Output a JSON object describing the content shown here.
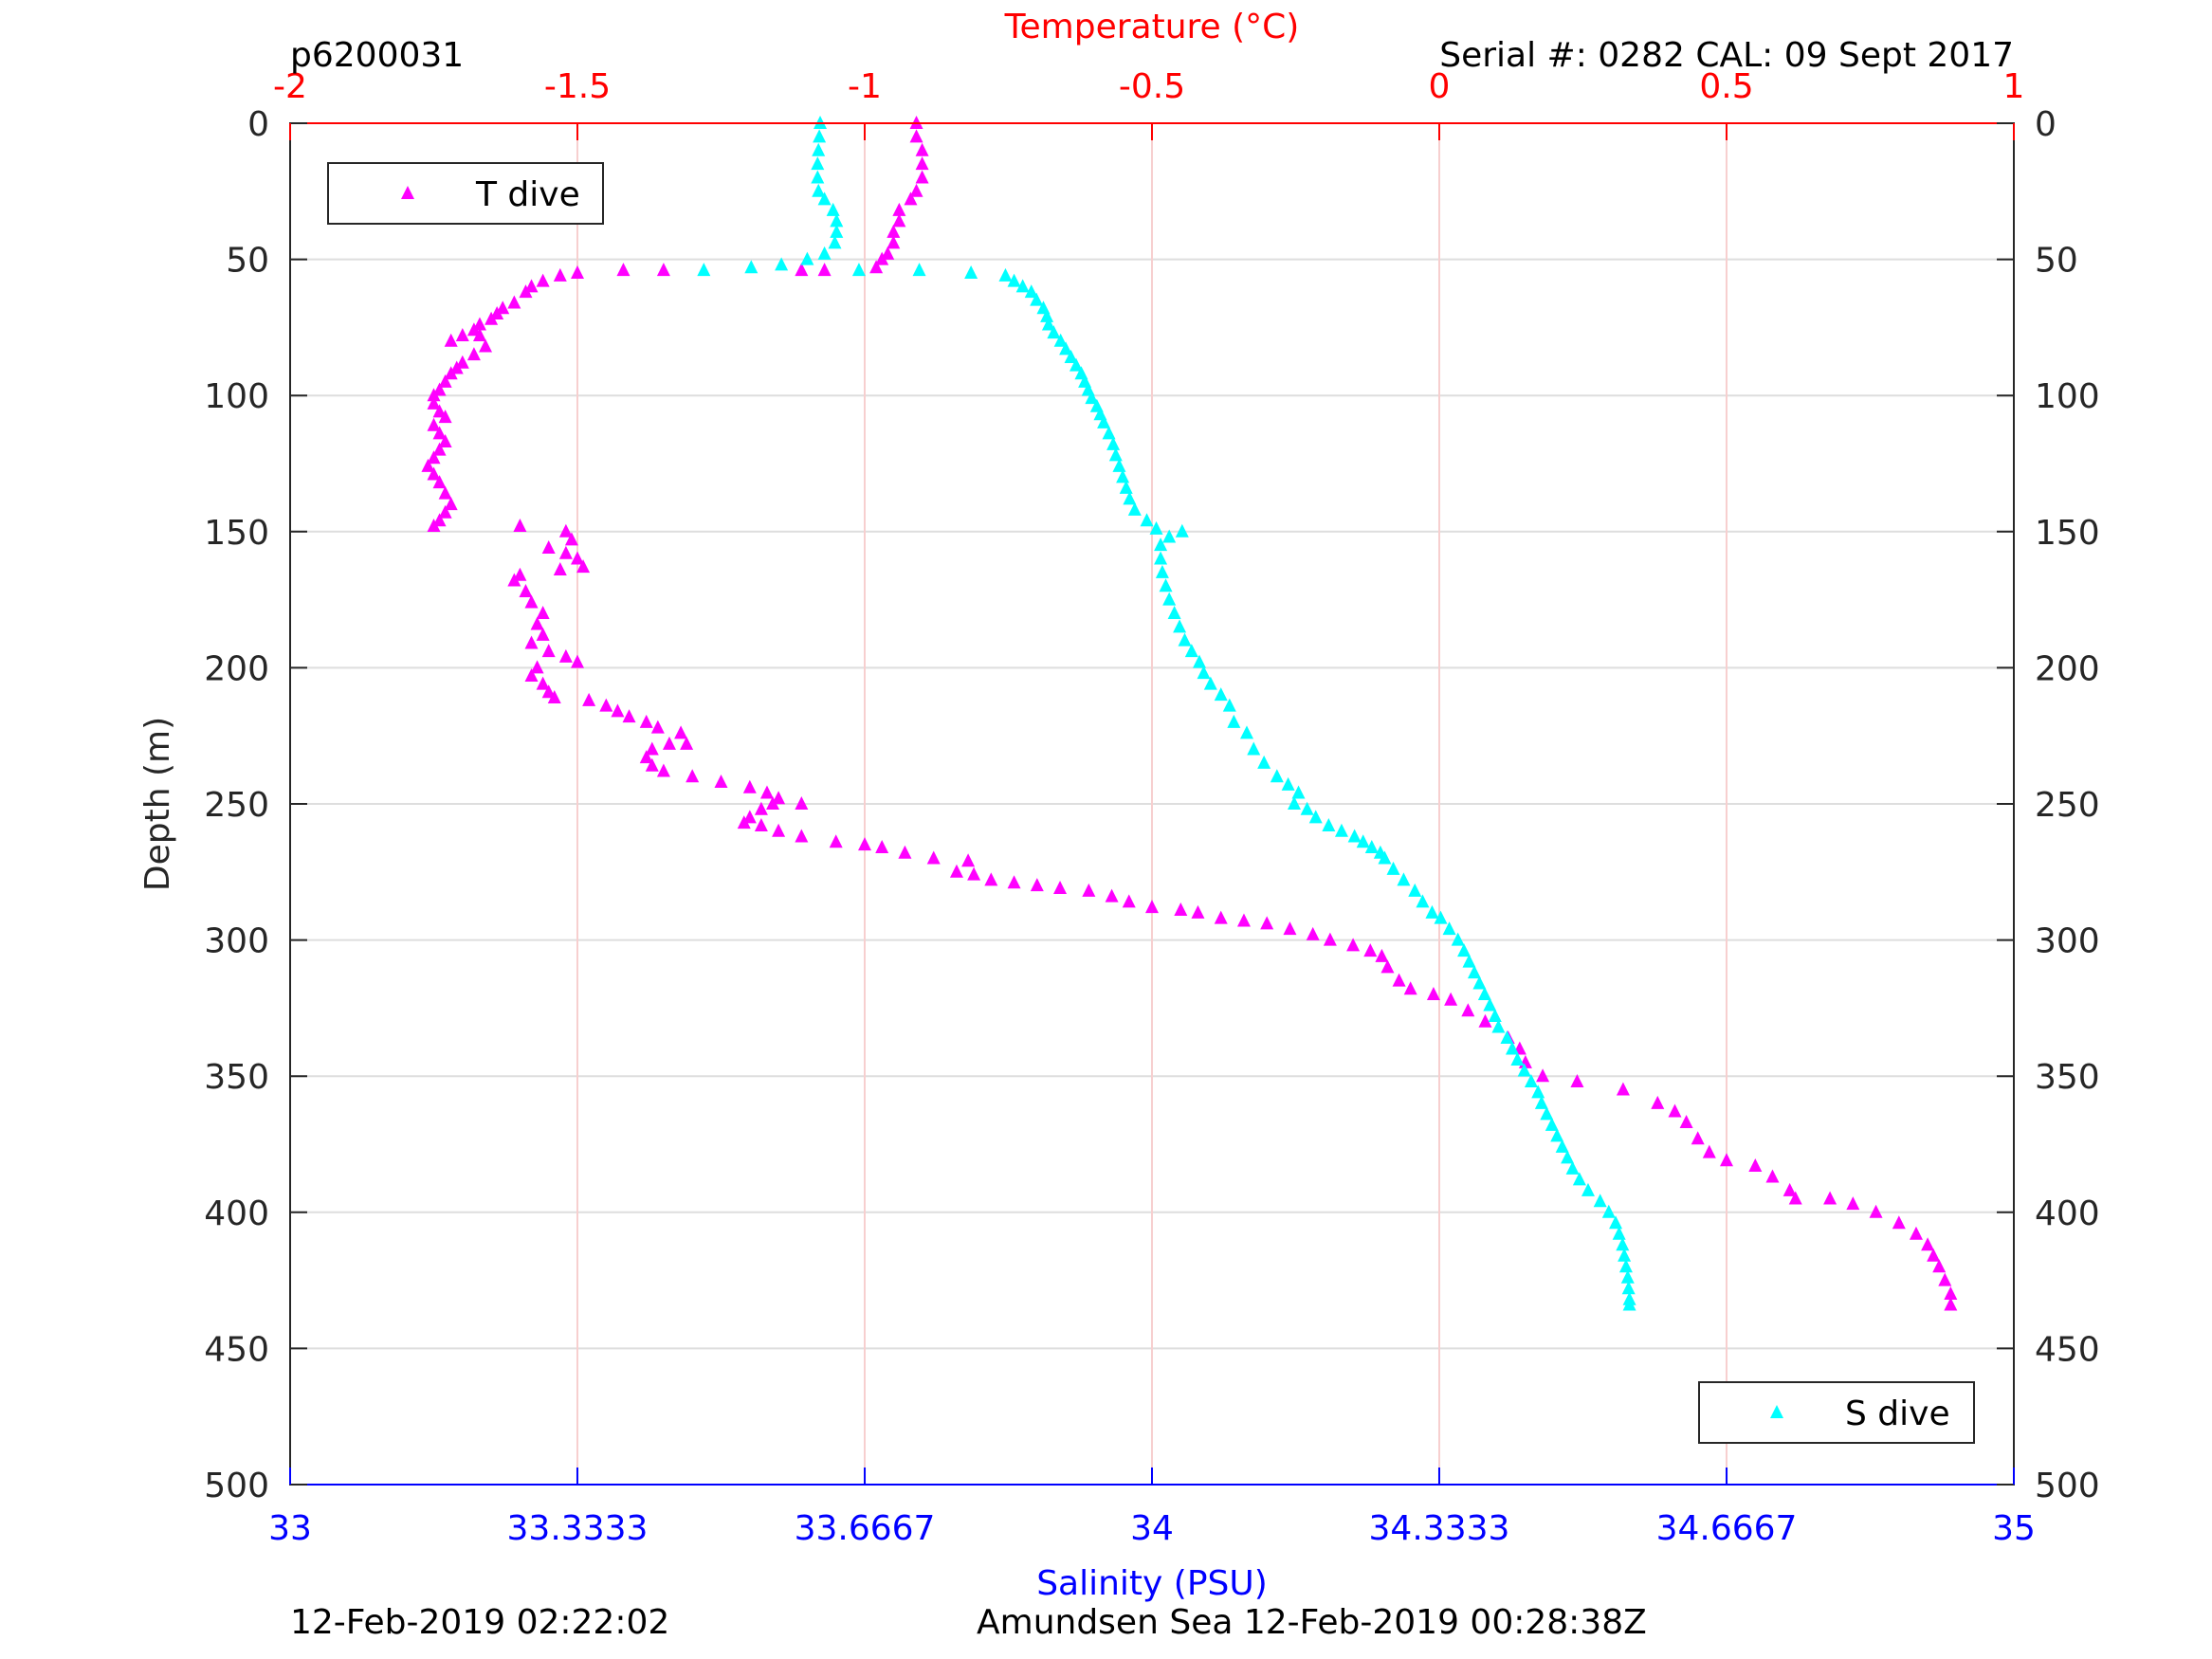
{
  "header": {
    "profile_id": "p6200031",
    "serial_cal": "Serial #: 0282  CAL: 09 Sept 2017"
  },
  "footer": {
    "left": "12-Feb-2019 02:22:02",
    "right": "Amundsen Sea 12-Feb-2019 00:28:38Z"
  },
  "chart_data": {
    "type": "scatter",
    "title": "",
    "top_axis": {
      "label": "Temperature (°C)",
      "range": [
        -2,
        1
      ],
      "ticks": [
        -2,
        -1.5,
        -1,
        -0.5,
        0,
        0.5,
        1
      ],
      "tick_labels": [
        "-2",
        "-1.5",
        "-1",
        "-0.5",
        "0",
        "0.5",
        "1"
      ],
      "color": "#ff0000"
    },
    "bottom_axis": {
      "label": "Salinity (PSU)",
      "range": [
        33,
        35
      ],
      "ticks": [
        33,
        33.3333,
        33.6667,
        34,
        34.3333,
        34.6667,
        35
      ],
      "tick_labels": [
        "33",
        "33.3333",
        "33.6667",
        "34",
        "34.3333",
        "34.6667",
        "35"
      ],
      "color": "#0000ff"
    },
    "y_axis": {
      "label": "Depth (m)",
      "range": [
        0,
        500
      ],
      "reversed": true,
      "ticks": [
        0,
        50,
        100,
        150,
        200,
        250,
        300,
        350,
        400,
        450,
        500
      ],
      "tick_labels": [
        "0",
        "50",
        "100",
        "150",
        "200",
        "250",
        "300",
        "350",
        "400",
        "450",
        "500"
      ]
    },
    "grid": true,
    "marker": "triangle",
    "series": [
      {
        "name": "T dive",
        "axis": "temperature",
        "color": "#ff00ff",
        "legend_position": "top-left",
        "points": [
          [
            -0.91,
            0
          ],
          [
            -0.91,
            5
          ],
          [
            -0.9,
            10
          ],
          [
            -0.9,
            15
          ],
          [
            -0.9,
            20
          ],
          [
            -0.91,
            25
          ],
          [
            -0.92,
            28
          ],
          [
            -0.94,
            32
          ],
          [
            -0.94,
            36
          ],
          [
            -0.95,
            40
          ],
          [
            -0.95,
            44
          ],
          [
            -0.96,
            48
          ],
          [
            -0.97,
            50
          ],
          [
            -0.98,
            53
          ],
          [
            -1.07,
            54
          ],
          [
            -1.11,
            54
          ],
          [
            -1.35,
            54
          ],
          [
            -1.42,
            54
          ],
          [
            -1.5,
            55
          ],
          [
            -1.53,
            56
          ],
          [
            -1.56,
            58
          ],
          [
            -1.58,
            60
          ],
          [
            -1.59,
            62
          ],
          [
            -1.61,
            66
          ],
          [
            -1.63,
            68
          ],
          [
            -1.64,
            70
          ],
          [
            -1.65,
            72
          ],
          [
            -1.67,
            74
          ],
          [
            -1.68,
            76
          ],
          [
            -1.7,
            78
          ],
          [
            -1.72,
            80
          ],
          [
            -1.67,
            78
          ],
          [
            -1.66,
            82
          ],
          [
            -1.68,
            85
          ],
          [
            -1.7,
            88
          ],
          [
            -1.71,
            90
          ],
          [
            -1.72,
            92
          ],
          [
            -1.73,
            95
          ],
          [
            -1.74,
            98
          ],
          [
            -1.75,
            100
          ],
          [
            -1.75,
            103
          ],
          [
            -1.74,
            106
          ],
          [
            -1.73,
            108
          ],
          [
            -1.75,
            111
          ],
          [
            -1.74,
            114
          ],
          [
            -1.73,
            117
          ],
          [
            -1.74,
            120
          ],
          [
            -1.75,
            123
          ],
          [
            -1.76,
            126
          ],
          [
            -1.75,
            129
          ],
          [
            -1.74,
            132
          ],
          [
            -1.73,
            136
          ],
          [
            -1.72,
            140
          ],
          [
            -1.73,
            143
          ],
          [
            -1.74,
            146
          ],
          [
            -1.75,
            148
          ],
          [
            -1.6,
            148
          ],
          [
            -1.52,
            150
          ],
          [
            -1.51,
            153
          ],
          [
            -1.55,
            156
          ],
          [
            -1.52,
            158
          ],
          [
            -1.5,
            160
          ],
          [
            -1.49,
            163
          ],
          [
            -1.53,
            164
          ],
          [
            -1.6,
            166
          ],
          [
            -1.61,
            168
          ],
          [
            -1.59,
            172
          ],
          [
            -1.58,
            176
          ],
          [
            -1.56,
            180
          ],
          [
            -1.57,
            184
          ],
          [
            -1.56,
            188
          ],
          [
            -1.58,
            191
          ],
          [
            -1.55,
            194
          ],
          [
            -1.52,
            196
          ],
          [
            -1.5,
            198
          ],
          [
            -1.57,
            200
          ],
          [
            -1.58,
            203
          ],
          [
            -1.56,
            206
          ],
          [
            -1.55,
            209
          ],
          [
            -1.54,
            211
          ],
          [
            -1.48,
            212
          ],
          [
            -1.45,
            214
          ],
          [
            -1.43,
            216
          ],
          [
            -1.41,
            218
          ],
          [
            -1.38,
            220
          ],
          [
            -1.36,
            222
          ],
          [
            -1.32,
            224
          ],
          [
            -1.31,
            228
          ],
          [
            -1.34,
            228
          ],
          [
            -1.37,
            230
          ],
          [
            -1.38,
            233
          ],
          [
            -1.37,
            236
          ],
          [
            -1.35,
            238
          ],
          [
            -1.3,
            240
          ],
          [
            -1.25,
            242
          ],
          [
            -1.2,
            244
          ],
          [
            -1.17,
            246
          ],
          [
            -1.15,
            248
          ],
          [
            -1.11,
            250
          ],
          [
            -1.16,
            250
          ],
          [
            -1.18,
            252
          ],
          [
            -1.2,
            255
          ],
          [
            -1.21,
            257
          ],
          [
            -1.18,
            258
          ],
          [
            -1.15,
            260
          ],
          [
            -1.11,
            262
          ],
          [
            -1.05,
            264
          ],
          [
            -1.0,
            265
          ],
          [
            -0.97,
            266
          ],
          [
            -0.93,
            268
          ],
          [
            -0.88,
            270
          ],
          [
            -0.82,
            271
          ],
          [
            -0.84,
            275
          ],
          [
            -0.81,
            276
          ],
          [
            -0.78,
            278
          ],
          [
            -0.74,
            279
          ],
          [
            -0.7,
            280
          ],
          [
            -0.66,
            281
          ],
          [
            -0.61,
            282
          ],
          [
            -0.57,
            284
          ],
          [
            -0.54,
            286
          ],
          [
            -0.5,
            288
          ],
          [
            -0.45,
            289
          ],
          [
            -0.42,
            290
          ],
          [
            -0.38,
            292
          ],
          [
            -0.34,
            293
          ],
          [
            -0.3,
            294
          ],
          [
            -0.26,
            296
          ],
          [
            -0.22,
            298
          ],
          [
            -0.19,
            300
          ],
          [
            -0.15,
            302
          ],
          [
            -0.12,
            304
          ],
          [
            -0.1,
            306
          ],
          [
            -0.09,
            310
          ],
          [
            -0.07,
            315
          ],
          [
            -0.05,
            318
          ],
          [
            -0.01,
            320
          ],
          [
            0.02,
            322
          ],
          [
            0.05,
            326
          ],
          [
            0.08,
            330
          ],
          [
            0.12,
            336
          ],
          [
            0.14,
            340
          ],
          [
            0.15,
            345
          ],
          [
            0.18,
            350
          ],
          [
            0.24,
            352
          ],
          [
            0.32,
            355
          ],
          [
            0.38,
            360
          ],
          [
            0.41,
            363
          ],
          [
            0.43,
            367
          ],
          [
            0.45,
            373
          ],
          [
            0.47,
            378
          ],
          [
            0.5,
            381
          ],
          [
            0.55,
            383
          ],
          [
            0.58,
            387
          ],
          [
            0.61,
            392
          ],
          [
            0.62,
            395
          ],
          [
            0.68,
            395
          ],
          [
            0.72,
            397
          ],
          [
            0.76,
            400
          ],
          [
            0.8,
            404
          ],
          [
            0.83,
            408
          ],
          [
            0.85,
            412
          ],
          [
            0.86,
            416
          ],
          [
            0.87,
            420
          ],
          [
            0.88,
            425
          ],
          [
            0.89,
            430
          ],
          [
            0.89,
            434
          ]
        ]
      },
      {
        "name": "S dive",
        "axis": "salinity",
        "color": "#00ffff",
        "legend_position": "bottom-right",
        "points": [
          [
            33.615,
            0
          ],
          [
            33.614,
            5
          ],
          [
            33.613,
            10
          ],
          [
            33.612,
            15
          ],
          [
            33.612,
            20
          ],
          [
            33.613,
            25
          ],
          [
            33.62,
            28
          ],
          [
            33.63,
            32
          ],
          [
            33.634,
            36
          ],
          [
            33.634,
            40
          ],
          [
            33.632,
            44
          ],
          [
            33.62,
            48
          ],
          [
            33.6,
            50
          ],
          [
            33.57,
            52
          ],
          [
            33.535,
            53
          ],
          [
            33.48,
            54
          ],
          [
            33.66,
            54
          ],
          [
            33.73,
            54
          ],
          [
            33.79,
            55
          ],
          [
            33.83,
            56
          ],
          [
            33.84,
            58
          ],
          [
            33.85,
            60
          ],
          [
            33.86,
            62
          ],
          [
            33.866,
            65
          ],
          [
            33.874,
            68
          ],
          [
            33.878,
            71
          ],
          [
            33.88,
            74
          ],
          [
            33.886,
            77
          ],
          [
            33.894,
            80
          ],
          [
            33.9,
            83
          ],
          [
            33.906,
            86
          ],
          [
            33.912,
            89
          ],
          [
            33.918,
            92
          ],
          [
            33.922,
            95
          ],
          [
            33.926,
            98
          ],
          [
            33.93,
            101
          ],
          [
            33.936,
            104
          ],
          [
            33.94,
            107
          ],
          [
            33.944,
            110
          ],
          [
            33.95,
            114
          ],
          [
            33.955,
            118
          ],
          [
            33.958,
            122
          ],
          [
            33.962,
            126
          ],
          [
            33.966,
            130
          ],
          [
            33.97,
            134
          ],
          [
            33.974,
            138
          ],
          [
            33.98,
            142
          ],
          [
            33.994,
            146
          ],
          [
            34.005,
            149
          ],
          [
            34.035,
            150
          ],
          [
            34.02,
            152
          ],
          [
            34.01,
            155
          ],
          [
            34.01,
            160
          ],
          [
            34.012,
            165
          ],
          [
            34.016,
            170
          ],
          [
            34.02,
            175
          ],
          [
            34.026,
            180
          ],
          [
            34.032,
            185
          ],
          [
            34.038,
            190
          ],
          [
            34.046,
            194
          ],
          [
            34.055,
            198
          ],
          [
            34.06,
            202
          ],
          [
            34.068,
            206
          ],
          [
            34.08,
            210
          ],
          [
            34.09,
            214
          ],
          [
            34.095,
            220
          ],
          [
            34.11,
            224
          ],
          [
            34.118,
            230
          ],
          [
            34.13,
            235
          ],
          [
            34.145,
            240
          ],
          [
            34.158,
            243
          ],
          [
            34.17,
            246
          ],
          [
            34.165,
            250
          ],
          [
            34.18,
            252
          ],
          [
            34.19,
            255
          ],
          [
            34.205,
            258
          ],
          [
            34.22,
            260
          ],
          [
            34.235,
            262
          ],
          [
            34.245,
            264
          ],
          [
            34.255,
            266
          ],
          [
            34.265,
            268
          ],
          [
            34.27,
            270
          ],
          [
            34.28,
            274
          ],
          [
            34.292,
            278
          ],
          [
            34.305,
            282
          ],
          [
            34.314,
            286
          ],
          [
            34.325,
            290
          ],
          [
            34.335,
            292
          ],
          [
            34.345,
            296
          ],
          [
            34.355,
            300
          ],
          [
            34.362,
            304
          ],
          [
            34.368,
            308
          ],
          [
            34.374,
            312
          ],
          [
            34.38,
            316
          ],
          [
            34.386,
            320
          ],
          [
            34.392,
            324
          ],
          [
            34.398,
            328
          ],
          [
            34.402,
            332
          ],
          [
            34.412,
            336
          ],
          [
            34.418,
            340
          ],
          [
            34.424,
            344
          ],
          [
            34.432,
            348
          ],
          [
            34.44,
            352
          ],
          [
            34.448,
            356
          ],
          [
            34.452,
            360
          ],
          [
            34.458,
            364
          ],
          [
            34.464,
            368
          ],
          [
            34.47,
            372
          ],
          [
            34.476,
            376
          ],
          [
            34.482,
            380
          ],
          [
            34.488,
            384
          ],
          [
            34.496,
            388
          ],
          [
            34.506,
            392
          ],
          [
            34.52,
            396
          ],
          [
            34.53,
            400
          ],
          [
            34.538,
            404
          ],
          [
            34.542,
            408
          ],
          [
            34.546,
            412
          ],
          [
            34.548,
            416
          ],
          [
            34.55,
            420
          ],
          [
            34.552,
            424
          ],
          [
            34.553,
            428
          ],
          [
            34.554,
            432
          ],
          [
            34.554,
            434
          ]
        ]
      }
    ]
  }
}
